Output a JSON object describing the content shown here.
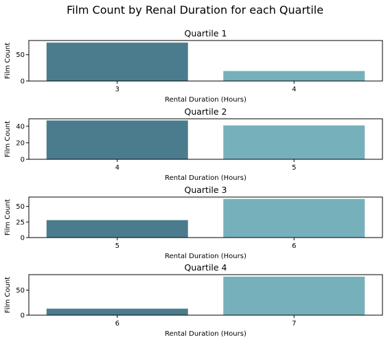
{
  "figure": {
    "title": "Film Count by Renal Duration for each Quartile"
  },
  "colors": {
    "bar_dark": "#4b7c8d",
    "bar_light": "#76b1bb",
    "axes_edge": "#000000"
  },
  "chart_data": [
    {
      "type": "bar",
      "title": "Quartile 1",
      "xlabel": "Rental Duration (Hours)",
      "ylabel": "Film Count",
      "categories": [
        "3",
        "4"
      ],
      "values": [
        73,
        19
      ],
      "ylim": [
        0,
        77
      ],
      "yticks": [
        0,
        50
      ],
      "grid": false
    },
    {
      "type": "bar",
      "title": "Quartile 2",
      "xlabel": "Rental Duration (Hours)",
      "ylabel": "Film Count",
      "categories": [
        "4",
        "5"
      ],
      "values": [
        47,
        41
      ],
      "ylim": [
        0,
        49
      ],
      "yticks": [
        0,
        20,
        40
      ],
      "grid": false
    },
    {
      "type": "bar",
      "title": "Quartile 3",
      "xlabel": "Rental Duration (Hours)",
      "ylabel": "Film Count",
      "categories": [
        "5",
        "6"
      ],
      "values": [
        28,
        62
      ],
      "ylim": [
        0,
        65
      ],
      "yticks": [
        0,
        25,
        50
      ],
      "grid": false
    },
    {
      "type": "bar",
      "title": "Quartile 4",
      "xlabel": "Rental Duration (Hours)",
      "ylabel": "Film Count",
      "categories": [
        "6",
        "7"
      ],
      "values": [
        13,
        77
      ],
      "ylim": [
        0,
        81
      ],
      "yticks": [
        0,
        50
      ],
      "grid": false
    }
  ]
}
